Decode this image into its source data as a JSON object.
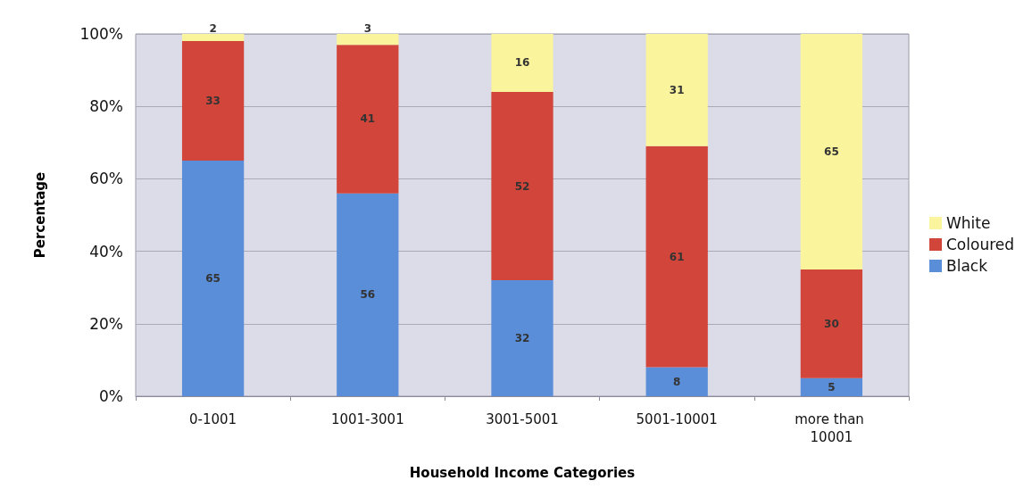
{
  "chart_data": {
    "type": "bar",
    "stacked": true,
    "xlabel": "Household Income Categories",
    "ylabel": "Percentage",
    "categories": [
      "0-1001",
      "1001-3001",
      "3001-5001",
      "5001-10001",
      "more than 10001"
    ],
    "series": [
      {
        "name": "Black",
        "color": "#5b8ed8",
        "values": [
          65,
          56,
          32,
          8,
          5
        ]
      },
      {
        "name": "Coloured",
        "color": "#d2453b",
        "values": [
          33,
          41,
          52,
          61,
          30
        ]
      },
      {
        "name": "White",
        "color": "#faf59c",
        "values": [
          2,
          3,
          16,
          31,
          65
        ]
      }
    ],
    "ylim": [
      0,
      100
    ],
    "yticks": [
      {
        "value": 0,
        "label": "0%"
      },
      {
        "value": 20,
        "label": "20%"
      },
      {
        "value": 40,
        "label": "40%"
      },
      {
        "value": 60,
        "label": "60%"
      },
      {
        "value": 80,
        "label": "80%"
      },
      {
        "value": 100,
        "label": "100%"
      }
    ],
    "grid": "y",
    "legend": "right",
    "data_labels": true
  }
}
